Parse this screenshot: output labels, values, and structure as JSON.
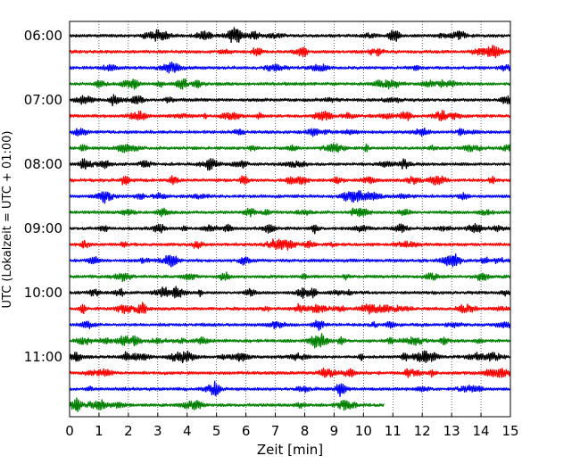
{
  "chart_data": {
    "type": "line",
    "title": "",
    "xlabel": "Zeit  [min]",
    "ylabel": "UTC (Lokalzeit = UTC + 01:00)",
    "xlim": [
      0,
      15
    ],
    "x_ticks": [
      0,
      1,
      2,
      3,
      4,
      5,
      6,
      7,
      8,
      9,
      10,
      11,
      12,
      13,
      14,
      15
    ],
    "x_grid": "dotted vertical lines at each minute",
    "y_ticks": [
      "06:00",
      "07:00",
      "08:00",
      "09:00",
      "10:00",
      "11:00"
    ],
    "trace_interval_minutes": 15,
    "start_hour_utc": "06:00",
    "trace_colors": [
      "#000000",
      "#ff0000",
      "#0000ff",
      "#008000"
    ],
    "traces": [
      {
        "start": "06:00",
        "duration_min": 15
      },
      {
        "start": "06:15",
        "duration_min": 15
      },
      {
        "start": "06:30",
        "duration_min": 15
      },
      {
        "start": "06:45",
        "duration_min": 15
      },
      {
        "start": "07:00",
        "duration_min": 15
      },
      {
        "start": "07:15",
        "duration_min": 15
      },
      {
        "start": "07:30",
        "duration_min": 15
      },
      {
        "start": "07:45",
        "duration_min": 15
      },
      {
        "start": "08:00",
        "duration_min": 15
      },
      {
        "start": "08:15",
        "duration_min": 15
      },
      {
        "start": "08:30",
        "duration_min": 15
      },
      {
        "start": "08:45",
        "duration_min": 15
      },
      {
        "start": "09:00",
        "duration_min": 15
      },
      {
        "start": "09:15",
        "duration_min": 15
      },
      {
        "start": "09:30",
        "duration_min": 15
      },
      {
        "start": "09:45",
        "duration_min": 15
      },
      {
        "start": "10:00",
        "duration_min": 15
      },
      {
        "start": "10:15",
        "duration_min": 15
      },
      {
        "start": "10:30",
        "duration_min": 15
      },
      {
        "start": "10:45",
        "duration_min": 15
      },
      {
        "start": "11:00",
        "duration_min": 15
      },
      {
        "start": "11:15",
        "duration_min": 15
      },
      {
        "start": "11:30",
        "duration_min": 15
      },
      {
        "start": "11:45",
        "duration_min": 10.7
      }
    ]
  }
}
